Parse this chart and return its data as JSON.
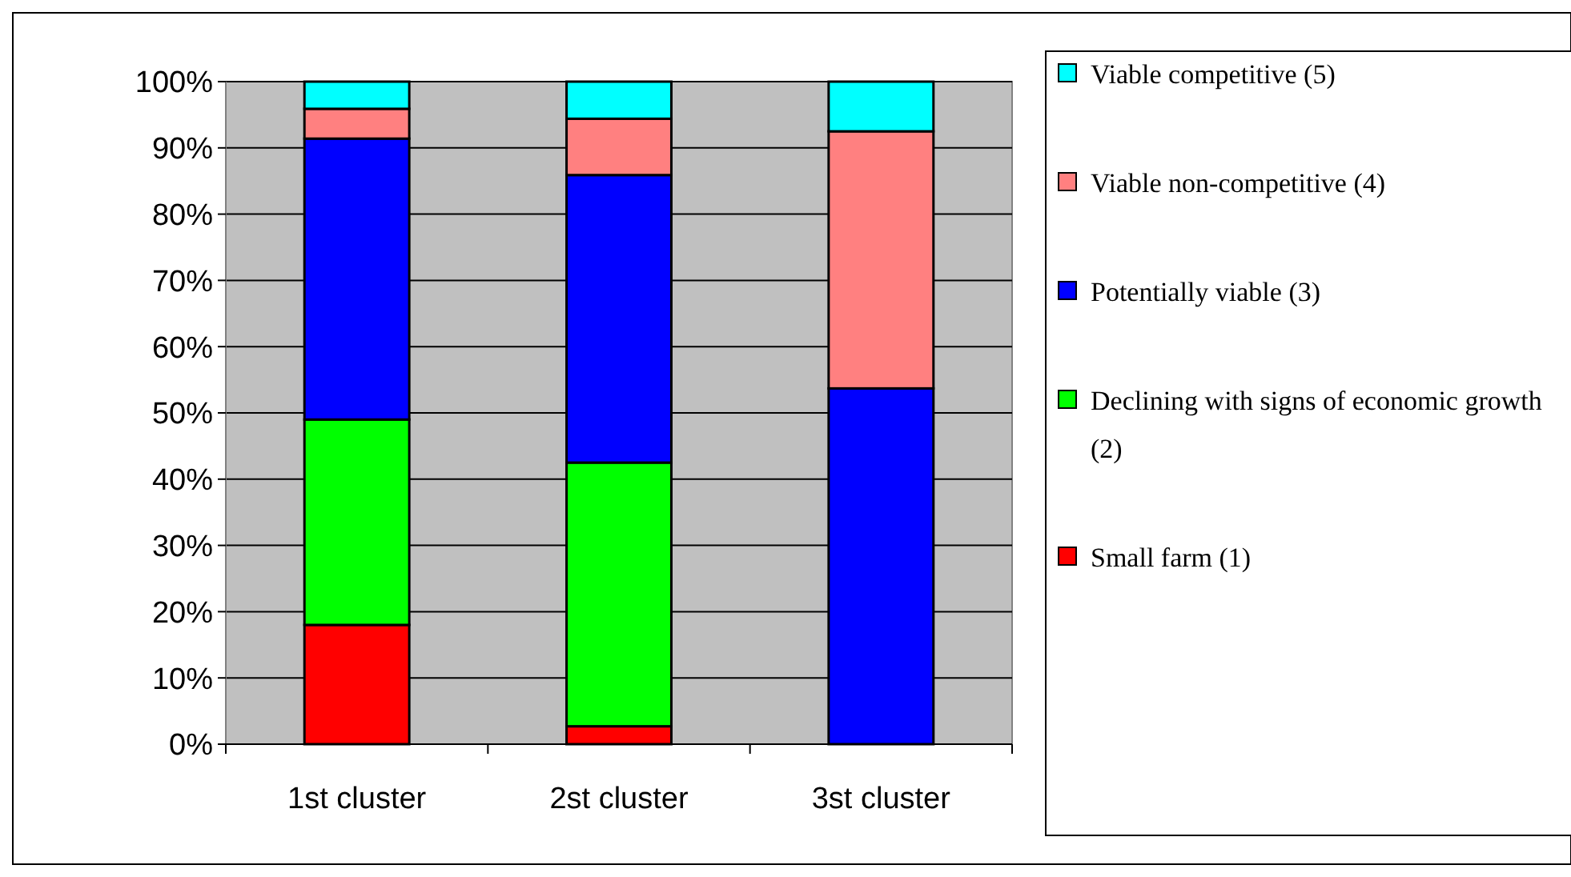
{
  "chart_data": {
    "type": "bar",
    "stacked": true,
    "categories": [
      "1st cluster",
      "2st cluster",
      "3st cluster"
    ],
    "series": [
      {
        "name": "Small farm (1)",
        "color": "#ff0000",
        "values": [
          18,
          2.7,
          0
        ]
      },
      {
        "name": "Declining with signs of economic growth (2)",
        "color": "#00ff00",
        "values": [
          31,
          39.8,
          0
        ]
      },
      {
        "name": "Potentially viable (3)",
        "color": "#0000ff",
        "values": [
          42.4,
          43.4,
          53.7
        ]
      },
      {
        "name": "Viable non-competitive (4)",
        "color": "#ff8080",
        "values": [
          4.5,
          8.5,
          38.8
        ]
      },
      {
        "name": "Viable competitive (5)",
        "color": "#00ffff",
        "values": [
          4.1,
          5.6,
          7.5
        ]
      }
    ],
    "ylim": [
      0,
      100
    ],
    "yticks": [
      {
        "value": 0,
        "label": "0%"
      },
      {
        "value": 10,
        "label": "10%"
      },
      {
        "value": 20,
        "label": "20%"
      },
      {
        "value": 30,
        "label": "30%"
      },
      {
        "value": 40,
        "label": "40%"
      },
      {
        "value": 50,
        "label": "50%"
      },
      {
        "value": 60,
        "label": "60%"
      },
      {
        "value": 70,
        "label": "70%"
      },
      {
        "value": 80,
        "label": "80%"
      },
      {
        "value": 90,
        "label": "90%"
      },
      {
        "value": 100,
        "label": "100%"
      }
    ],
    "grid": "y",
    "legend": "right"
  }
}
